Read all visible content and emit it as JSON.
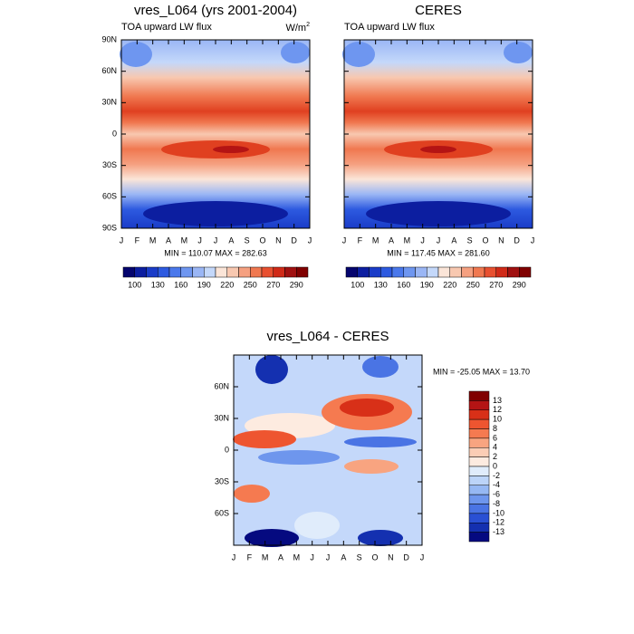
{
  "panels": [
    {
      "title": "vres_L064 (yrs 2001-2004)",
      "subtitle": "TOA upward LW flux",
      "units": "W/m",
      "units_sup": "2",
      "yticks": [
        "90N",
        "60N",
        "30N",
        "0",
        "30S",
        "60S",
        "90S"
      ],
      "xticks": [
        "J",
        "F",
        "M",
        "A",
        "M",
        "J",
        "J",
        "A",
        "S",
        "O",
        "N",
        "D",
        "J"
      ],
      "stats": "MIN = 110.07 MAX = 282.63",
      "colorbar": {
        "labels": [
          "100",
          "130",
          "160",
          "190",
          "220",
          "250",
          "270",
          "290"
        ],
        "colors": [
          "#05056e",
          "#0c1ea0",
          "#1a3cc8",
          "#2d5ae0",
          "#4a78eb",
          "#6e96f0",
          "#9ab6f5",
          "#c4d8fa",
          "#fbe5d8",
          "#f8c8b0",
          "#f5a080",
          "#f07850",
          "#e85030",
          "#d02a18",
          "#a01010",
          "#800000"
        ]
      }
    },
    {
      "title": "CERES",
      "subtitle": "TOA upward LW flux",
      "xticks": [
        "J",
        "F",
        "M",
        "A",
        "M",
        "J",
        "J",
        "A",
        "S",
        "O",
        "N",
        "D",
        "J"
      ],
      "stats": "MIN = 117.45 MAX = 281.60",
      "colorbar": {
        "labels": [
          "100",
          "130",
          "160",
          "190",
          "220",
          "250",
          "270",
          "290"
        ],
        "colors": [
          "#05056e",
          "#0c1ea0",
          "#1a3cc8",
          "#2d5ae0",
          "#4a78eb",
          "#6e96f0",
          "#9ab6f5",
          "#c4d8fa",
          "#fbe5d8",
          "#f8c8b0",
          "#f5a080",
          "#f07850",
          "#e85030",
          "#d02a18",
          "#a01010",
          "#800000"
        ]
      }
    },
    {
      "title": "vres_L064 - CERES",
      "yticks": [
        "60N",
        "30N",
        "0",
        "30S",
        "60S"
      ],
      "xticks": [
        "J",
        "F",
        "M",
        "A",
        "M",
        "J",
        "J",
        "A",
        "S",
        "O",
        "N",
        "D",
        "J"
      ],
      "stats": "MIN = -25.05 MAX =  13.70",
      "colorbar": {
        "labels": [
          "13",
          "12",
          "10",
          "8",
          "6",
          "4",
          "2",
          "0",
          "-2",
          "-4",
          "-6",
          "-8",
          "-10",
          "-12",
          "-13"
        ],
        "colors": [
          "#800000",
          "#b41414",
          "#d83018",
          "#ee5530",
          "#f57a50",
          "#f8a480",
          "#fbcdb5",
          "#fdebe0",
          "#e0ecfb",
          "#bcd4f8",
          "#96b8f3",
          "#6e96ed",
          "#4a74e4",
          "#2a50d4",
          "#1430b0",
          "#050a80"
        ]
      }
    }
  ]
}
